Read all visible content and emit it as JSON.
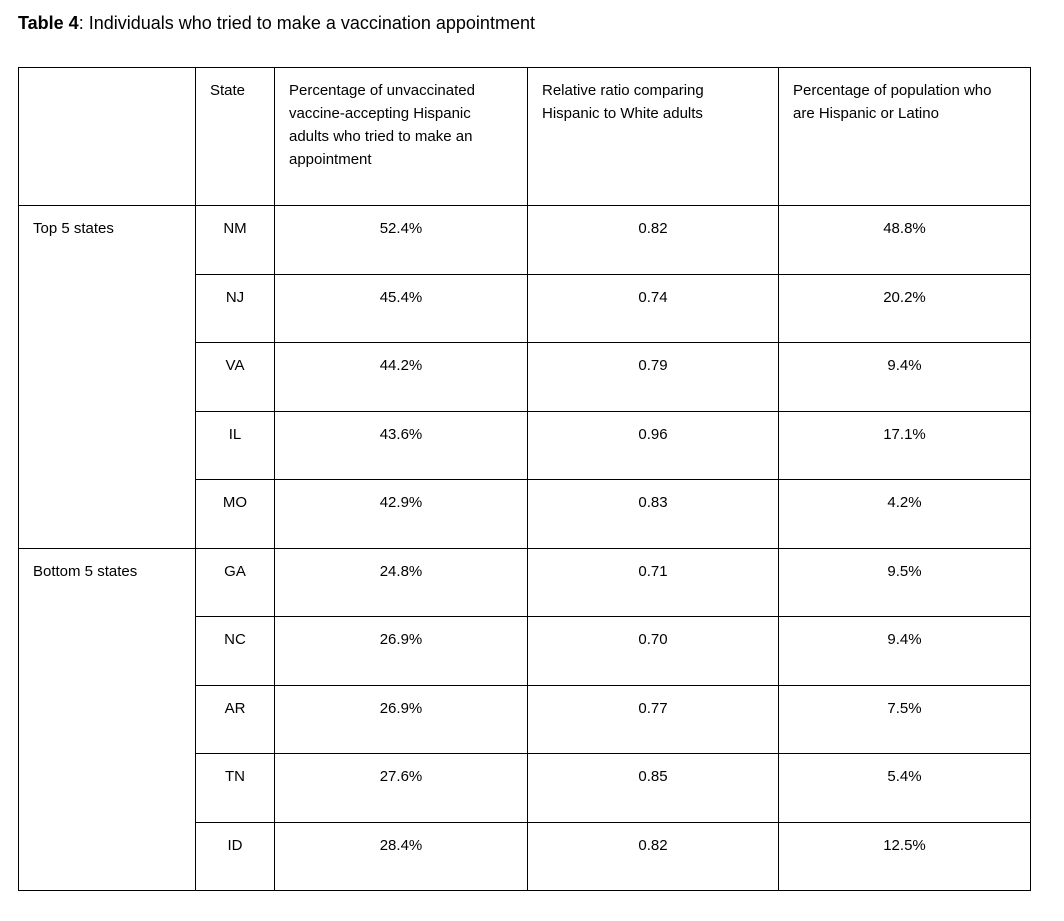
{
  "title": {
    "label": "Table 4",
    "rest": ": Individuals who tried to make a vaccination appointment"
  },
  "table": {
    "headers": [
      "",
      "State",
      "Percentage of unvaccinated vaccine-accepting Hispanic adults who tried to make an appointment",
      "Relative ratio comparing Hispanic to White adults",
      "Percentage of population who are Hispanic or Latino"
    ],
    "groups": [
      {
        "label": "Top 5 states",
        "rows": [
          {
            "state": "NM",
            "tried": "52.4%",
            "ratio": "0.82",
            "population": "48.8%"
          },
          {
            "state": "NJ",
            "tried": "45.4%",
            "ratio": "0.74",
            "population": "20.2%"
          },
          {
            "state": "VA",
            "tried": "44.2%",
            "ratio": "0.79",
            "population": "9.4%"
          },
          {
            "state": "IL",
            "tried": "43.6%",
            "ratio": "0.96",
            "population": "17.1%"
          },
          {
            "state": "MO",
            "tried": "42.9%",
            "ratio": "0.83",
            "population": "4.2%"
          }
        ]
      },
      {
        "label": "Bottom 5 states",
        "rows": [
          {
            "state": "GA",
            "tried": "24.8%",
            "ratio": "0.71",
            "population": "9.5%"
          },
          {
            "state": "NC",
            "tried": "26.9%",
            "ratio": "0.70",
            "population": "9.4%"
          },
          {
            "state": "AR",
            "tried": "26.9%",
            "ratio": "0.77",
            "population": "7.5%"
          },
          {
            "state": "TN",
            "tried": "27.6%",
            "ratio": "0.85",
            "population": "5.4%"
          },
          {
            "state": "ID",
            "tried": "28.4%",
            "ratio": "0.82",
            "population": "12.5%"
          }
        ]
      }
    ]
  }
}
